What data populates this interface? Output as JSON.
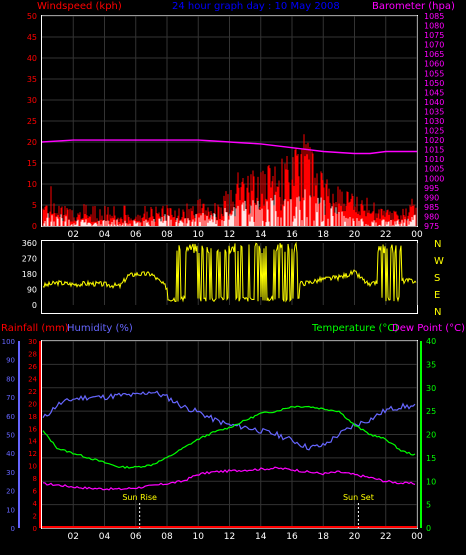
{
  "chart_data": [
    {
      "type": "bar",
      "title": "24 hour graph day : 10 May 2008",
      "left_axis_label": "Windspeed (kph)",
      "right_axis_label": "Barometer (hpa)",
      "left_range": [
        0,
        50
      ],
      "left_ticks": [
        "0",
        "5",
        "10",
        "15",
        "20",
        "25",
        "30",
        "35",
        "40",
        "45",
        "50"
      ],
      "right_range": [
        975,
        1085
      ],
      "right_ticks": [
        "975",
        "980",
        "985",
        "990",
        "995",
        "1000",
        "1005",
        "1010",
        "1015",
        "1020",
        "1025",
        "1030",
        "1035",
        "1040",
        "1045",
        "1050",
        "1055",
        "1060",
        "1065",
        "1070",
        "1075",
        "1080",
        "1085"
      ],
      "x_ticks": [
        "02",
        "04",
        "06",
        "08",
        "10",
        "12",
        "14",
        "16",
        "18",
        "20",
        "22",
        "00"
      ],
      "grid": true,
      "series": [
        {
          "name": "Windspeed",
          "color": "#ff0000",
          "axis": "left",
          "x": [
            0,
            1,
            2,
            3,
            4,
            5,
            6,
            7,
            8,
            9,
            10,
            11,
            12,
            13,
            14,
            15,
            16,
            17,
            18,
            19,
            20,
            21,
            22,
            23,
            24
          ],
          "values": [
            5,
            4,
            3,
            2,
            2,
            2,
            2,
            3,
            4,
            3,
            4,
            4,
            6,
            9,
            10,
            11,
            13,
            17,
            9,
            7,
            5,
            3,
            3,
            3,
            4
          ]
        },
        {
          "name": "Wind gust",
          "color": "#ff0000",
          "axis": "left",
          "x": [
            0,
            2,
            4,
            6,
            8,
            10,
            12,
            13,
            14,
            15,
            16,
            16.5,
            17,
            18,
            20,
            22,
            24
          ],
          "values": [
            13,
            6,
            5,
            5,
            5,
            8,
            11,
            15,
            14,
            16,
            17,
            24,
            20,
            12,
            8,
            7,
            8
          ]
        },
        {
          "name": "Wind average",
          "color": "#ffffff",
          "axis": "left",
          "x": [
            0,
            1,
            2,
            3,
            4,
            5,
            6,
            7,
            8,
            9,
            10,
            11,
            12,
            13,
            14,
            15,
            16,
            17,
            18,
            19,
            20,
            21,
            22,
            23,
            24
          ],
          "values": [
            2,
            2,
            1,
            1,
            1,
            1,
            1,
            1,
            2,
            1,
            2,
            2,
            3,
            4,
            4,
            5,
            5,
            6,
            4,
            3,
            2,
            1,
            1,
            1,
            2
          ]
        },
        {
          "name": "Barometer",
          "color": "#ff00ff",
          "axis": "right",
          "x": [
            0,
            2,
            4,
            6,
            8,
            9,
            10,
            11,
            12,
            13,
            14,
            15,
            16,
            17,
            18,
            19,
            20,
            21,
            22,
            23,
            24
          ],
          "values": [
            1019,
            1020,
            1020,
            1020,
            1020,
            1020,
            1020,
            1019.5,
            1019,
            1018.5,
            1018,
            1017,
            1016,
            1015,
            1014,
            1013.5,
            1013,
            1013,
            1014,
            1014,
            1014
          ]
        }
      ]
    },
    {
      "type": "line",
      "right_axis_labels": [
        "N",
        "W",
        "S",
        "E",
        "N"
      ],
      "left_range": [
        0,
        360
      ],
      "left_ticks": [
        "0",
        "90",
        "180",
        "270",
        "360"
      ],
      "x_ticks": [
        "02",
        "04",
        "06",
        "08",
        "10",
        "12",
        "14",
        "16",
        "18",
        "20",
        "22",
        "00"
      ],
      "series": [
        {
          "name": "Wind direction",
          "color": "#ffff00",
          "x": [
            0,
            1,
            2,
            3,
            4,
            5,
            5.5,
            6,
            7,
            8,
            9,
            10,
            11,
            12,
            13,
            14,
            15,
            16,
            17,
            18,
            19,
            20,
            21,
            22,
            23,
            24
          ],
          "values": [
            110,
            130,
            120,
            125,
            120,
            110,
            170,
            180,
            180,
            100,
            150,
            200,
            170,
            220,
            200,
            190,
            170,
            120,
            130,
            150,
            160,
            190,
            110,
            170,
            140,
            140
          ]
        }
      ]
    },
    {
      "type": "line",
      "left_axis_labels": [
        "Rainfall (mm)",
        "Humidity (%)"
      ],
      "right_axis_labels": [
        "Temperature (°C)",
        "Dew Point (°C)"
      ],
      "rainfall_ticks": [
        "0",
        "2",
        "4",
        "6",
        "8",
        "10",
        "12",
        "14",
        "16",
        "18",
        "20",
        "22",
        "24",
        "26",
        "28",
        "30"
      ],
      "humidity_ticks": [
        "0",
        "10",
        "20",
        "30",
        "40",
        "50",
        "60",
        "70",
        "80",
        "90",
        "100"
      ],
      "temperature_ticks": [
        "0",
        "5",
        "10",
        "15",
        "20",
        "25",
        "30",
        "35",
        "40"
      ],
      "rainfall_range": [
        0,
        30
      ],
      "humidity_range": [
        0,
        100
      ],
      "temperature_range": [
        0,
        40
      ],
      "x_ticks": [
        "02",
        "04",
        "06",
        "08",
        "10",
        "12",
        "14",
        "16",
        "18",
        "20",
        "22",
        "00"
      ],
      "annotations": [
        "Sun Rise",
        "Sun Set"
      ],
      "annotation_x": [
        6.25,
        20.25
      ],
      "series": [
        {
          "name": "Humidity",
          "color": "#6666ff",
          "axis": "humidity",
          "x": [
            0,
            1,
            2,
            3,
            4,
            5,
            6,
            7,
            8,
            9,
            10,
            11,
            12,
            13,
            14,
            15,
            16,
            17,
            18,
            19,
            20,
            21,
            22,
            23,
            24
          ],
          "values": [
            58,
            66,
            69,
            70,
            70,
            71,
            71,
            73,
            70,
            65,
            62,
            58,
            55,
            54,
            52,
            50,
            47,
            43,
            44,
            50,
            55,
            58,
            63,
            65,
            65
          ]
        },
        {
          "name": "Temperature",
          "color": "#00ff00",
          "axis": "temperature",
          "x": [
            0,
            1,
            2,
            3,
            4,
            5,
            6,
            7,
            8,
            9,
            10,
            11,
            12,
            13,
            14,
            15,
            16,
            17,
            18,
            19,
            20,
            21,
            22,
            23,
            24
          ],
          "values": [
            21,
            17,
            16,
            15,
            14,
            13,
            13,
            13.5,
            15,
            17,
            19,
            20.5,
            21.5,
            23,
            24.5,
            25,
            26,
            26,
            25.5,
            25,
            22,
            20,
            19,
            16.5,
            15.5
          ]
        },
        {
          "name": "Dew Point",
          "color": "#ff00ff",
          "axis": "temperature",
          "x": [
            0,
            1,
            2,
            3,
            4,
            5,
            6,
            7,
            8,
            9,
            10,
            11,
            12,
            13,
            14,
            15,
            16,
            17,
            18,
            19,
            20,
            21,
            22,
            23,
            24
          ],
          "values": [
            9.5,
            9.2,
            8.8,
            8.5,
            8.4,
            8.3,
            8.6,
            9.0,
            9.5,
            10.0,
            11.5,
            12.0,
            12.2,
            12.4,
            12.6,
            12.8,
            12.5,
            12.0,
            11.6,
            12.0,
            11.4,
            10.8,
            10.0,
            9.6,
            9.5
          ]
        },
        {
          "name": "Rainfall",
          "color": "#ff0000",
          "axis": "rainfall",
          "x": [
            0,
            24
          ],
          "values": [
            0,
            0
          ]
        }
      ]
    }
  ]
}
